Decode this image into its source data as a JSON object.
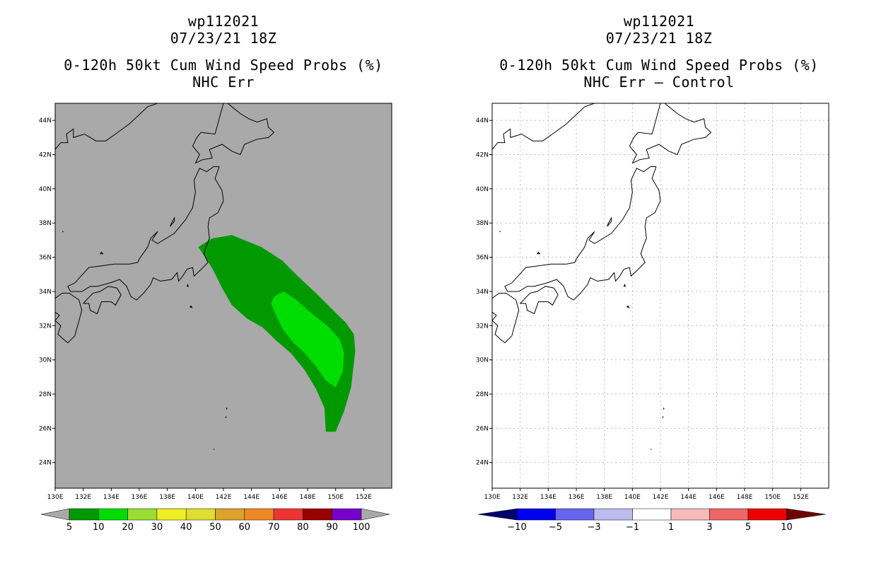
{
  "left_panel": {
    "storm_id": "wp112021",
    "datetime": "07/23/21 18Z",
    "product": "0-120h 50kt Cum Wind Speed Probs (%)",
    "subtitle": "NHC Err",
    "map_background": "#a9a9a9",
    "probability_regions": [
      {
        "range_percent": "5-10",
        "color": "#009900"
      },
      {
        "range_percent": "10-20",
        "color": "#00dd00"
      }
    ],
    "colorbar": {
      "labels": [
        "5",
        "10",
        "20",
        "30",
        "40",
        "50",
        "60",
        "70",
        "80",
        "90",
        "100"
      ],
      "colors": [
        "#a9a9a9",
        "#009900",
        "#00dd00",
        "#99dd33",
        "#eeee22",
        "#dddd33",
        "#dda32a",
        "#ee8822",
        "#ee3333",
        "#990000",
        "#7700cc",
        "#a9a9a9"
      ]
    }
  },
  "right_panel": {
    "storm_id": "wp112021",
    "datetime": "07/23/21 18Z",
    "product": "0-120h 50kt Cum Wind Speed Probs (%)",
    "subtitle": "NHC Err – Control",
    "map_background": "#ffffff",
    "colorbar": {
      "labels": [
        "−10",
        "−5",
        "−3",
        "−1",
        "1",
        "3",
        "5",
        "10"
      ],
      "colors": [
        "#00006e",
        "#0000ee",
        "#6666ee",
        "#bbbbee",
        "#ffffff",
        "#f5bbbb",
        "#ee6666",
        "#ee0000",
        "#6e0000"
      ]
    }
  },
  "axes": {
    "lon_range": [
      130,
      154
    ],
    "lat_range": [
      22.5,
      45
    ],
    "lon_ticks": [
      "130E",
      "132E",
      "134E",
      "136E",
      "138E",
      "140E",
      "142E",
      "144E",
      "146E",
      "148E",
      "150E",
      "152E"
    ],
    "lat_ticks": [
      "24N",
      "26N",
      "28N",
      "30N",
      "32N",
      "34N",
      "36N",
      "38N",
      "40N",
      "42N",
      "44N"
    ]
  }
}
